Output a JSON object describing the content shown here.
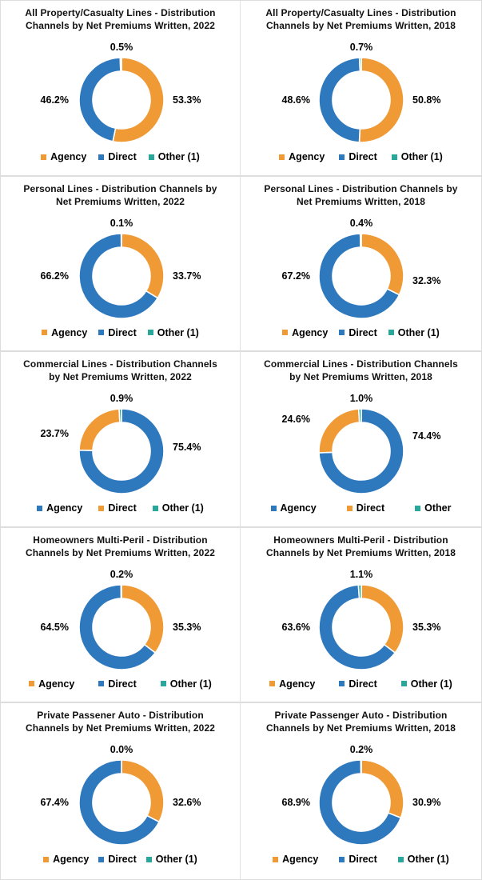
{
  "page": {
    "background_color": "#FFFFFF",
    "grid_line_color": "#E0E0E0",
    "columns": 2,
    "rows": 5
  },
  "palette": {
    "orange": "#F09A36",
    "blue": "#2E78BE",
    "teal": "#29A79B"
  },
  "chart_data": [
    {
      "type": "donut",
      "title_lines": [
        "All Property/Casualty Lines - Distribution",
        "Channels by Net Premiums Written, 2022"
      ],
      "slices": [
        {
          "label": "Agency",
          "value": 53.3,
          "display": "53.3%",
          "color": "#F09A36"
        },
        {
          "label": "Direct",
          "value": 46.2,
          "display": "46.2%",
          "color": "#2E78BE"
        },
        {
          "label": "Other (1)",
          "value": 0.5,
          "display": "0.5%",
          "color": "#29A79B"
        }
      ],
      "layout": {
        "legend_gap": 15,
        "left_dy": 0,
        "right_dy": 0
      }
    },
    {
      "type": "donut",
      "title_lines": [
        "All Property/Casualty Lines - Distribution",
        "Channels by Net Premiums Written, 2018"
      ],
      "slices": [
        {
          "label": "Agency",
          "value": 50.8,
          "display": "50.8%",
          "color": "#F09A36"
        },
        {
          "label": "Direct",
          "value": 48.6,
          "display": "48.6%",
          "color": "#2E78BE"
        },
        {
          "label": "Other (1)",
          "value": 0.7,
          "display": "0.7%",
          "color": "#29A79B"
        }
      ],
      "layout": {
        "legend_gap": 18,
        "left_dy": 0,
        "right_dy": 0
      }
    },
    {
      "type": "donut",
      "title_lines": [
        "Personal Lines - Distribution Channels by",
        "Net Premiums Written, 2022"
      ],
      "slices": [
        {
          "label": "Agency",
          "value": 33.7,
          "display": "33.7%",
          "color": "#F09A36"
        },
        {
          "label": "Direct",
          "value": 66.2,
          "display": "66.2%",
          "color": "#2E78BE"
        },
        {
          "label": "Other (1)",
          "value": 0.1,
          "display": "0.1%",
          "color": "#29A79B"
        }
      ],
      "layout": {
        "legend_gap": 14,
        "left_dy": 0,
        "right_dy": 0
      }
    },
    {
      "type": "donut",
      "title_lines": [
        "Personal Lines - Distribution Channels by",
        "Net Premiums Written, 2018"
      ],
      "slices": [
        {
          "label": "Agency",
          "value": 32.3,
          "display": "32.3%",
          "color": "#F09A36"
        },
        {
          "label": "Direct",
          "value": 67.2,
          "display": "67.2%",
          "color": "#2E78BE"
        },
        {
          "label": "Other (1)",
          "value": 0.4,
          "display": "0.4%",
          "color": "#29A79B"
        }
      ],
      "layout": {
        "legend_gap": 14,
        "left_dy": 0,
        "right_dy": 6
      }
    },
    {
      "type": "donut",
      "title_lines": [
        "Commercial Lines - Distribution Channels",
        "by Net Premiums Written, 2022"
      ],
      "slices": [
        {
          "label": "Agency",
          "value": 75.4,
          "display": "75.4%",
          "color": "#2E78BE"
        },
        {
          "label": "Direct",
          "value": 23.7,
          "display": "23.7%",
          "color": "#F09A36"
        },
        {
          "label": "Other (1)",
          "value": 0.9,
          "display": "0.9%",
          "color": "#29A79B"
        }
      ],
      "layout": {
        "legend_gap": 20,
        "left_dy": -22,
        "right_dy": -5
      }
    },
    {
      "type": "donut",
      "title_lines": [
        "Commercial Lines - Distribution Channels",
        "by Net Premiums Written, 2018"
      ],
      "slices": [
        {
          "label": "Agency",
          "value": 74.4,
          "display": "74.4%",
          "color": "#2E78BE"
        },
        {
          "label": "Direct",
          "value": 24.6,
          "display": "24.6%",
          "color": "#F09A36"
        },
        {
          "label": "Other",
          "value": 1.0,
          "display": "1.0%",
          "color": "#29A79B"
        }
      ],
      "layout": {
        "legend_gap": 38,
        "left_dy": -40,
        "right_dy": -19
      }
    },
    {
      "type": "donut",
      "title_lines": [
        "Homeowners Multi-Peril - Distribution",
        "Channels by Net Premiums Written, 2022"
      ],
      "slices": [
        {
          "label": "Agency",
          "value": 35.3,
          "display": "35.3%",
          "color": "#F09A36"
        },
        {
          "label": "Direct",
          "value": 64.5,
          "display": "64.5%",
          "color": "#2E78BE"
        },
        {
          "label": "Other (1)",
          "value": 0.2,
          "display": "0.2%",
          "color": "#29A79B"
        }
      ],
      "layout": {
        "legend_gap": 30,
        "left_dy": 0,
        "right_dy": 0
      }
    },
    {
      "type": "donut",
      "title_lines": [
        "Homeowners Multi-Peril - Distribution",
        "Channels by Net Premiums Written, 2018"
      ],
      "slices": [
        {
          "label": "Agency",
          "value": 35.3,
          "display": "35.3%",
          "color": "#F09A36"
        },
        {
          "label": "Direct",
          "value": 63.6,
          "display": "63.6%",
          "color": "#2E78BE"
        },
        {
          "label": "Other (1)",
          "value": 1.1,
          "display": "1.1%",
          "color": "#29A79B"
        }
      ],
      "layout": {
        "legend_gap": 30,
        "left_dy": 0,
        "right_dy": 0
      }
    },
    {
      "type": "donut",
      "title_lines": [
        "Private Passener Auto - Distribution",
        "Channels by Net Premiums Written, 2022"
      ],
      "slices": [
        {
          "label": "Agency",
          "value": 32.6,
          "display": "32.6%",
          "color": "#F09A36"
        },
        {
          "label": "Direct",
          "value": 67.4,
          "display": "67.4%",
          "color": "#2E78BE"
        },
        {
          "label": "Other (1)",
          "value": 0.0,
          "display": "0.0%",
          "color": "#29A79B"
        }
      ],
      "layout": {
        "legend_gap": 12,
        "left_dy": 0,
        "right_dy": 0
      }
    },
    {
      "type": "donut",
      "title_lines": [
        "Private Passenger Auto - Distribution",
        "Channels by Net Premiums Written, 2018"
      ],
      "slices": [
        {
          "label": "Agency",
          "value": 30.9,
          "display": "30.9%",
          "color": "#F09A36"
        },
        {
          "label": "Direct",
          "value": 68.9,
          "display": "68.9%",
          "color": "#2E78BE"
        },
        {
          "label": "Other (1)",
          "value": 0.2,
          "display": "0.2%",
          "color": "#29A79B"
        }
      ],
      "layout": {
        "legend_gap": 26,
        "left_dy": 0,
        "right_dy": 0
      }
    }
  ]
}
